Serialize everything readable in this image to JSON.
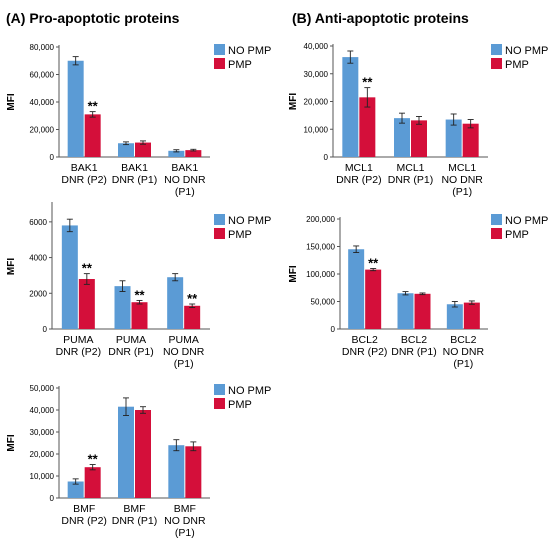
{
  "panel_titles": {
    "a": "(A) Pro-apoptotic proteins",
    "b": "(B) Anti-apoptotic proteins"
  },
  "colors": {
    "no_pmp": "#5b9bd5",
    "pmp": "#d40f3a"
  },
  "chart_data": [
    {
      "id": "bak1",
      "type": "bar",
      "ylabel": "MFI",
      "ylim": [
        0,
        80000
      ],
      "yticks": [
        "0",
        "20,000",
        "40,000",
        "60,000",
        "80,000"
      ],
      "yticks_values": [
        0,
        20000,
        40000,
        60000,
        80000
      ],
      "categories": [
        [
          "BAK1",
          "DNR (P2)"
        ],
        [
          "BAK1",
          "DNR (P1)"
        ],
        [
          "BAK1",
          "NO DNR",
          "(P1)"
        ]
      ],
      "series": [
        {
          "name": "NO PMP",
          "values": [
            70000,
            10000,
            4500
          ],
          "err": [
            3000,
            1000,
            800
          ]
        },
        {
          "name": "PMP",
          "values": [
            31000,
            10500,
            5000
          ],
          "err": [
            2000,
            1200,
            600
          ]
        }
      ],
      "significance": [
        "**",
        "",
        ""
      ],
      "legend": [
        "NO PMP",
        "PMP"
      ]
    },
    {
      "id": "mcl1",
      "type": "bar",
      "ylabel": "MFI",
      "ylim": [
        0,
        40000
      ],
      "yticks": [
        "0",
        "10,000",
        "20,000",
        "30,000",
        "40,000"
      ],
      "yticks_values": [
        0,
        10000,
        20000,
        30000,
        40000
      ],
      "categories": [
        [
          "MCL1",
          "DNR (P2)"
        ],
        [
          "MCL1",
          "DNR (P1)"
        ],
        [
          "MCL1",
          "NO DNR",
          "(P1)"
        ]
      ],
      "series": [
        {
          "name": "NO PMP",
          "values": [
            36000,
            14000,
            13500
          ],
          "err": [
            2200,
            1800,
            2000
          ]
        },
        {
          "name": "PMP",
          "values": [
            21500,
            13200,
            12000
          ],
          "err": [
            3500,
            1400,
            1500
          ]
        }
      ],
      "significance": [
        "**",
        "",
        ""
      ],
      "legend": [
        "NO PMP",
        "PMP"
      ]
    },
    {
      "id": "puma",
      "type": "bar",
      "ylabel": "MFI",
      "ylim": [
        0,
        7000
      ],
      "yticks": [
        "0",
        "2000",
        "4000",
        "6000"
      ],
      "yticks_values": [
        0,
        2000,
        4000,
        6000
      ],
      "categories": [
        [
          "PUMA",
          "DNR (P2)"
        ],
        [
          "PUMA",
          "DNR (P1)"
        ],
        [
          "PUMA",
          "NO DNR",
          "(P1)"
        ]
      ],
      "series": [
        {
          "name": "NO PMP",
          "values": [
            5800,
            2400,
            2900
          ],
          "err": [
            350,
            300,
            200
          ]
        },
        {
          "name": "PMP",
          "values": [
            2800,
            1500,
            1300
          ],
          "err": [
            300,
            100,
            100
          ]
        }
      ],
      "significance": [
        "**",
        "**",
        "**"
      ],
      "legend": [
        "NO PMP",
        "PMP"
      ]
    },
    {
      "id": "bcl2",
      "type": "bar",
      "ylabel": "MFI",
      "ylim": [
        0,
        200000
      ],
      "yticks": [
        "0",
        "50,000",
        "100,000",
        "150,000",
        "200,000"
      ],
      "yticks_values": [
        0,
        50000,
        100000,
        150000,
        200000
      ],
      "categories": [
        [
          "BCL2",
          "DNR (P2)"
        ],
        [
          "BCL2",
          "DNR (P1)"
        ],
        [
          "BCL2",
          "NO DNR",
          "(P1)"
        ]
      ],
      "series": [
        {
          "name": "NO PMP",
          "values": [
            145000,
            65000,
            45000
          ],
          "err": [
            6000,
            3000,
            5000
          ]
        },
        {
          "name": "PMP",
          "values": [
            108000,
            64000,
            48000
          ],
          "err": [
            2000,
            1500,
            3000
          ]
        }
      ],
      "significance": [
        "**",
        "",
        ""
      ],
      "legend": [
        "NO PMP",
        "PMP"
      ]
    },
    {
      "id": "bmf",
      "type": "bar",
      "ylabel": "MFI",
      "ylim": [
        0,
        50000
      ],
      "yticks": [
        "0",
        "10,000",
        "20,000",
        "30,000",
        "40,000",
        "50,000"
      ],
      "yticks_values": [
        0,
        10000,
        20000,
        30000,
        40000,
        50000
      ],
      "categories": [
        [
          "BMF",
          "DNR (P2)"
        ],
        [
          "BMF",
          "DNR (P1)"
        ],
        [
          "BMF",
          "NO DNR",
          "(P1)"
        ]
      ],
      "series": [
        {
          "name": "NO PMP",
          "values": [
            7500,
            41500,
            24000
          ],
          "err": [
            1200,
            4000,
            2500
          ]
        },
        {
          "name": "PMP",
          "values": [
            14000,
            40000,
            23500
          ],
          "err": [
            1200,
            1500,
            2000
          ]
        }
      ],
      "significance": [
        "**",
        "",
        ""
      ],
      "legend": [
        "NO PMP",
        "PMP"
      ]
    }
  ]
}
